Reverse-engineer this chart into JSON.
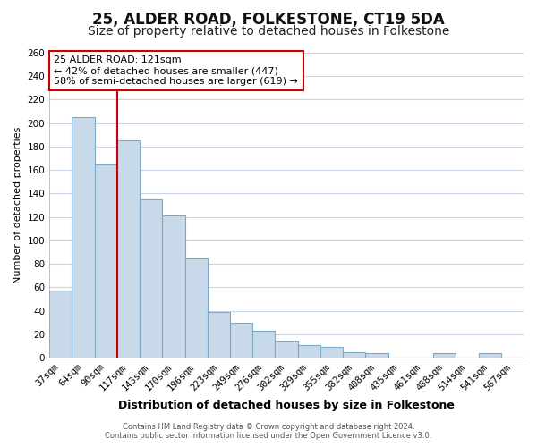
{
  "title": "25, ALDER ROAD, FOLKESTONE, CT19 5DA",
  "subtitle": "Size of property relative to detached houses in Folkestone",
  "xlabel": "Distribution of detached houses by size in Folkestone",
  "ylabel": "Number of detached properties",
  "bar_labels": [
    "37sqm",
    "64sqm",
    "90sqm",
    "117sqm",
    "143sqm",
    "170sqm",
    "196sqm",
    "223sqm",
    "249sqm",
    "276sqm",
    "302sqm",
    "329sqm",
    "355sqm",
    "382sqm",
    "408sqm",
    "435sqm",
    "461sqm",
    "488sqm",
    "514sqm",
    "541sqm",
    "567sqm"
  ],
  "bar_heights": [
    57,
    205,
    165,
    185,
    135,
    121,
    85,
    39,
    30,
    23,
    15,
    11,
    9,
    5,
    4,
    0,
    0,
    4,
    0,
    4,
    0
  ],
  "bar_color": "#c8daea",
  "bar_edge_color": "#7aaac8",
  "vline_color": "#cc0000",
  "vline_x_index": 3,
  "annotation_text_line1": "25 ALDER ROAD: 121sqm",
  "annotation_text_line2": "← 42% of detached houses are smaller (447)",
  "annotation_text_line3": "58% of semi-detached houses are larger (619) →",
  "annotation_box_facecolor": "#ffffff",
  "annotation_box_edgecolor": "#cc0000",
  "ylim_max": 260,
  "ytick_step": 20,
  "footer_line1": "Contains HM Land Registry data © Crown copyright and database right 2024.",
  "footer_line2": "Contains public sector information licensed under the Open Government Licence v3.0.",
  "plot_bg_color": "#ffffff",
  "fig_bg_color": "#ffffff",
  "grid_color": "#c8d8e8",
  "title_fontsize": 12,
  "subtitle_fontsize": 10,
  "xlabel_fontsize": 9,
  "ylabel_fontsize": 8,
  "tick_fontsize": 7.5,
  "annot_fontsize": 8,
  "footer_fontsize": 6
}
